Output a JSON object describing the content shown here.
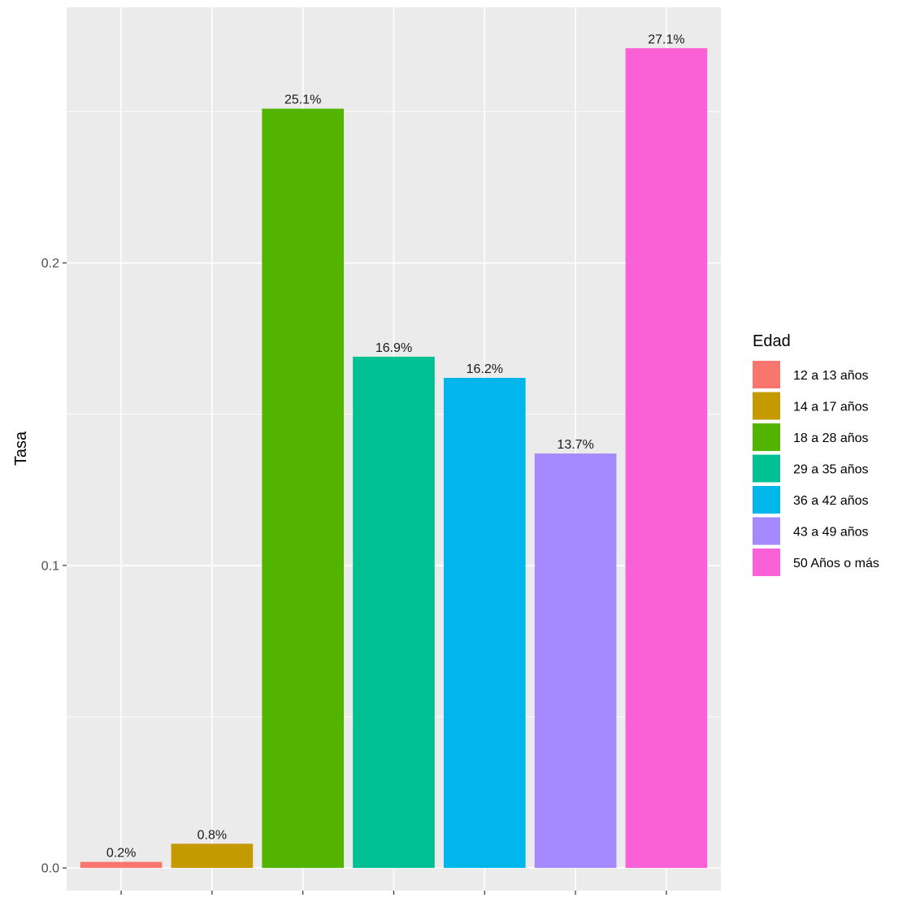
{
  "chart_data": {
    "type": "bar",
    "categories": [
      "12 a 13 años",
      "14 a 17 años",
      "18 a 28 años",
      "29 a 35 años",
      "36 a 42 años",
      "43 a 49 años",
      "50 Años o más"
    ],
    "values": [
      0.002,
      0.008,
      0.251,
      0.169,
      0.162,
      0.137,
      0.271
    ],
    "data_labels": [
      "0.2%",
      "0.8%",
      "25.1%",
      "16.9%",
      "16.2%",
      "13.7%",
      "27.1%"
    ],
    "colors": [
      "#F8766D",
      "#C49A00",
      "#53B400",
      "#00C094",
      "#00B6EB",
      "#A58AFF",
      "#FB61D7"
    ],
    "title": "",
    "xlabel": "",
    "ylabel": "Tasa",
    "ylim": [
      -0.0075,
      0.2845
    ],
    "yticks": [
      0.0,
      0.1,
      0.2
    ],
    "ytick_labels": [
      "0.0",
      "0.1",
      "0.2"
    ],
    "grid": true,
    "legend": {
      "title": "Edad",
      "position": "right"
    }
  }
}
